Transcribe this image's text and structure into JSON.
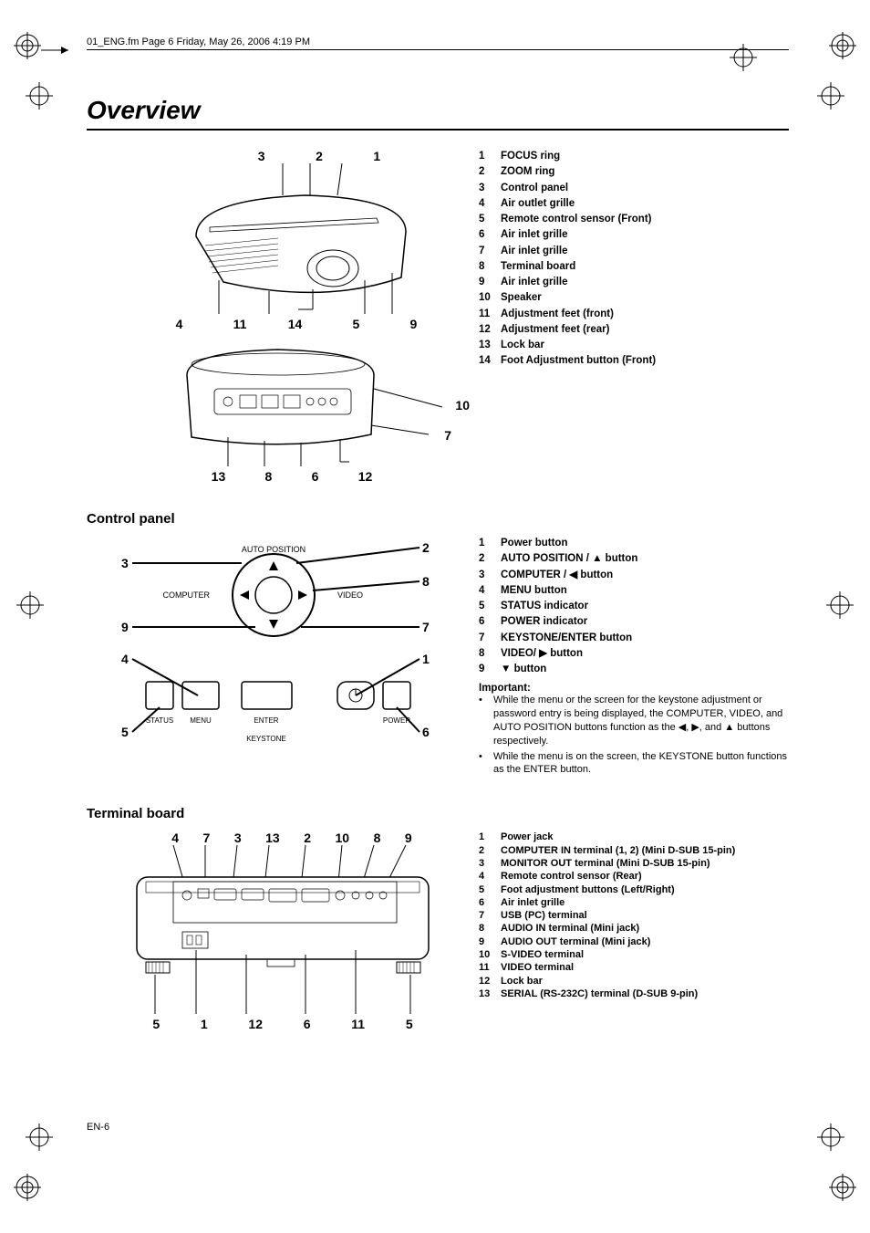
{
  "header": {
    "text": "01_ENG.fm  Page 6  Friday, May 26, 2006  4:19 PM"
  },
  "title": "Overview",
  "footer": "EN-6",
  "overview": {
    "callouts_top": [
      "3",
      "2",
      "1"
    ],
    "callouts_mid": [
      "4",
      "11",
      "14",
      "5",
      "9"
    ],
    "callouts_side": [
      "10",
      "7"
    ],
    "callouts_bottom": [
      "13",
      "8",
      "6",
      "12"
    ],
    "list": [
      {
        "n": "1",
        "label": "FOCUS ring"
      },
      {
        "n": "2",
        "label": "ZOOM ring"
      },
      {
        "n": "3",
        "label": "Control panel"
      },
      {
        "n": "4",
        "label": "Air outlet grille"
      },
      {
        "n": "5",
        "label": "Remote control sensor (Front)"
      },
      {
        "n": "6",
        "label": "Air inlet grille"
      },
      {
        "n": "7",
        "label": "Air inlet grille"
      },
      {
        "n": "8",
        "label": "Terminal board"
      },
      {
        "n": "9",
        "label": "Air inlet grille"
      },
      {
        "n": "10",
        "label": "Speaker"
      },
      {
        "n": "11",
        "label": "Adjustment feet (front)"
      },
      {
        "n": "12",
        "label": "Adjustment feet (rear)"
      },
      {
        "n": "13",
        "label": "Lock bar"
      },
      {
        "n": "14",
        "label": "Foot Adjustment button (Front)"
      }
    ]
  },
  "control_panel": {
    "heading": "Control panel",
    "labels": {
      "auto_position": "AUTO POSITION",
      "computer": "COMPUTER",
      "video": "VIDEO",
      "status": "STATUS",
      "menu": "MENU",
      "enter": "ENTER",
      "power": "POWER",
      "keystone": "KEYSTONE"
    },
    "callouts": [
      "1",
      "2",
      "3",
      "4",
      "5",
      "6",
      "7",
      "8",
      "9"
    ],
    "list": [
      {
        "n": "1",
        "label": "Power button"
      },
      {
        "n": "2",
        "label": "AUTO POSITION / ▲ button"
      },
      {
        "n": "3",
        "label": "COMPUTER / ◀ button"
      },
      {
        "n": "4",
        "label": "MENU button"
      },
      {
        "n": "5",
        "label": "STATUS indicator"
      },
      {
        "n": "6",
        "label": "POWER indicator"
      },
      {
        "n": "7",
        "label": "KEYSTONE/ENTER button"
      },
      {
        "n": "8",
        "label": "VIDEO/ ▶ button"
      },
      {
        "n": "9",
        "label": "▼ button"
      }
    ],
    "important_heading": "Important:",
    "bullets": [
      "While the menu or the screen for the keystone adjustment or password entry is being displayed, the COMPUTER, VIDEO, and AUTO POSITION buttons function as the ◀, ▶, and ▲ buttons respectively.",
      "While the menu is on the screen, the KEYSTONE button functions as the ENTER button."
    ]
  },
  "terminal_board": {
    "heading": "Terminal board",
    "callouts_top": [
      "4",
      "7",
      "3",
      "13",
      "2",
      "10",
      "8",
      "9"
    ],
    "callouts_bottom": [
      "5",
      "1",
      "12",
      "6",
      "11",
      "5"
    ],
    "list": [
      {
        "n": "1",
        "label": "Power jack"
      },
      {
        "n": "2",
        "label": "COMPUTER IN terminal (1, 2) (Mini D-SUB 15-pin)"
      },
      {
        "n": "3",
        "label": "MONITOR OUT terminal (Mini D-SUB 15-pin)"
      },
      {
        "n": "4",
        "label": "Remote control sensor (Rear)"
      },
      {
        "n": "5",
        "label": "Foot adjustment buttons (Left/Right)"
      },
      {
        "n": "6",
        "label": "Air inlet grille"
      },
      {
        "n": "7",
        "label": "USB (PC) terminal"
      },
      {
        "n": "8",
        "label": "AUDIO IN terminal (Mini jack)"
      },
      {
        "n": "9",
        "label": "AUDIO OUT terminal (Mini jack)"
      },
      {
        "n": "10",
        "label": "S-VIDEO terminal"
      },
      {
        "n": "11",
        "label": "VIDEO terminal"
      },
      {
        "n": "12",
        "label": "Lock bar"
      },
      {
        "n": "13",
        "label": "SERIAL (RS-232C) terminal (D-SUB 9-pin)"
      }
    ]
  }
}
